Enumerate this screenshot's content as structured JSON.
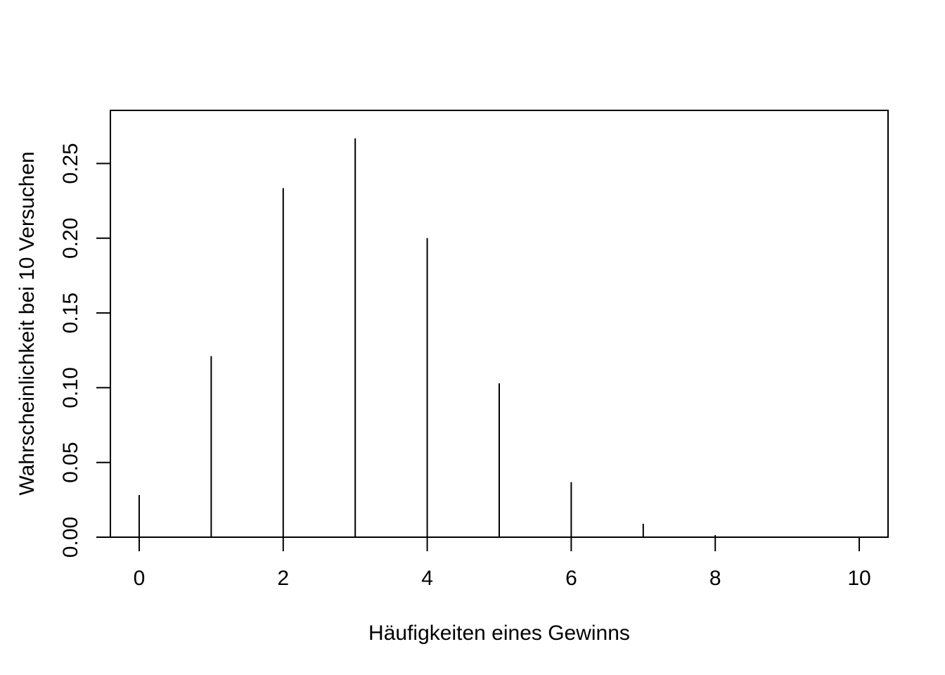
{
  "chart_data": {
    "type": "bar",
    "style": "vertical-lines",
    "xlabel": "Häufigkeiten eines Gewinns",
    "ylabel": "Wahrscheinlichkeit bei 10 Versuchen",
    "xlim": [
      -0.4,
      10.4
    ],
    "ylim": [
      0,
      0.2855
    ],
    "x_ticks": [
      0,
      2,
      4,
      6,
      8,
      10
    ],
    "x_tick_labels": [
      "0",
      "2",
      "4",
      "6",
      "8",
      "10"
    ],
    "y_ticks": [
      0,
      0.05,
      0.1,
      0.15,
      0.2,
      0.25
    ],
    "y_tick_labels": [
      "0.00",
      "0.05",
      "0.10",
      "0.15",
      "0.20",
      "0.25"
    ],
    "x": [
      0,
      1,
      2,
      3,
      4,
      5,
      6,
      7,
      8,
      9,
      10
    ],
    "values": [
      0.0282,
      0.1211,
      0.2335,
      0.2668,
      0.2001,
      0.1029,
      0.0368,
      0.009,
      0.0014,
      0.0001,
      0.0
    ],
    "grid": false,
    "legend": "none",
    "line_color": "#000000"
  }
}
